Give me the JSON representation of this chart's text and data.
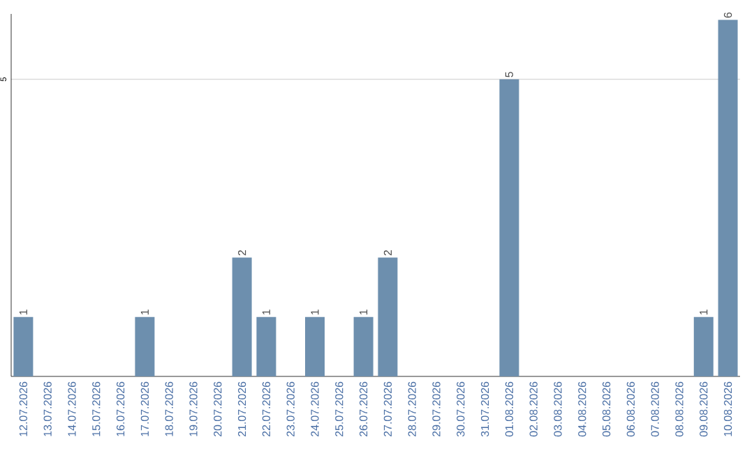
{
  "chart_data": {
    "type": "bar",
    "categories": [
      "12.07.2026",
      "13.07.2026",
      "14.07.2026",
      "15.07.2026",
      "16.07.2026",
      "17.07.2026",
      "18.07.2026",
      "19.07.2026",
      "20.07.2026",
      "21.07.2026",
      "22.07.2026",
      "23.07.2026",
      "24.07.2026",
      "25.07.2026",
      "26.07.2026",
      "27.07.2026",
      "28.07.2026",
      "29.07.2026",
      "30.07.2026",
      "31.07.2026",
      "01.08.2026",
      "02.08.2026",
      "03.08.2026",
      "04.08.2026",
      "05.08.2026",
      "06.08.2026",
      "07.08.2026",
      "08.08.2026",
      "09.08.2026",
      "10.08.2026"
    ],
    "values": [
      1,
      0,
      0,
      0,
      0,
      1,
      0,
      0,
      0,
      2,
      1,
      0,
      1,
      0,
      1,
      2,
      0,
      0,
      0,
      0,
      5,
      0,
      0,
      0,
      0,
      0,
      0,
      0,
      1,
      6
    ],
    "value_labels": [
      "1",
      null,
      null,
      null,
      null,
      "1",
      null,
      null,
      null,
      "2",
      "1",
      null,
      "1",
      null,
      "1",
      "2",
      null,
      null,
      null,
      null,
      "5",
      null,
      null,
      null,
      null,
      null,
      null,
      null,
      "1",
      "6"
    ],
    "color": "#6d8fae",
    "ylim": [
      0,
      6.1
    ],
    "yticks": [
      5
    ],
    "grid": "y"
  }
}
